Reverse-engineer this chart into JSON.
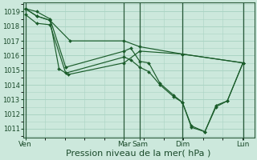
{
  "background_color": "#cce8dc",
  "grid_color": "#aad4c4",
  "line_color": "#1a5c2a",
  "marker_color": "#1a5c2a",
  "xlabel": "Pression niveau de la mer( hPa )",
  "xlabel_fontsize": 8,
  "ylim": [
    1010.4,
    1019.6
  ],
  "yticks": [
    1011,
    1012,
    1013,
    1014,
    1015,
    1016,
    1017,
    1018,
    1019
  ],
  "ytick_fontsize": 6,
  "xtick_fontsize": 6.5,
  "xtick_labels": [
    "Ven",
    "Mar",
    "Sam",
    "Dim",
    "Lun"
  ],
  "xtick_positions": [
    0,
    4.4,
    5.1,
    7.0,
    9.7
  ],
  "vline_positions": [
    0,
    4.4,
    5.1,
    7.0,
    9.7
  ],
  "xlim": [
    -0.1,
    10.2
  ],
  "series": [
    {
      "x": [
        0.0,
        0.5,
        1.1,
        1.8,
        4.4,
        4.7,
        5.1,
        5.5,
        6.0,
        6.6,
        7.0,
        7.4,
        8.0,
        8.5,
        9.0,
        9.7
      ],
      "y": [
        1019.2,
        1019.0,
        1018.5,
        1015.2,
        1016.3,
        1016.5,
        1015.6,
        1015.5,
        1014.1,
        1013.3,
        1012.8,
        1011.2,
        1010.8,
        1012.6,
        1012.9,
        1015.5
      ]
    },
    {
      "x": [
        0.0,
        0.5,
        1.1,
        1.8,
        4.4,
        4.7,
        5.1,
        5.5,
        6.0,
        6.6,
        7.0,
        7.4,
        8.0,
        8.5,
        9.0,
        9.7
      ],
      "y": [
        1018.8,
        1018.2,
        1018.1,
        1014.8,
        1015.9,
        1015.7,
        1015.2,
        1014.9,
        1014.0,
        1013.2,
        1012.8,
        1011.1,
        1010.8,
        1012.5,
        1012.9,
        1015.5
      ]
    },
    {
      "x": [
        0.0,
        0.5,
        1.1,
        2.0,
        4.4,
        5.1,
        7.0,
        9.7
      ],
      "y": [
        1019.2,
        1018.7,
        1018.4,
        1017.0,
        1017.0,
        1016.6,
        1016.1,
        1015.5
      ]
    },
    {
      "x": [
        0.0,
        0.5,
        1.1,
        1.5,
        1.9,
        4.4,
        5.1,
        7.0,
        9.7
      ],
      "y": [
        1019.2,
        1018.7,
        1018.4,
        1015.1,
        1014.7,
        1015.5,
        1016.3,
        1016.1,
        1015.5
      ]
    }
  ]
}
